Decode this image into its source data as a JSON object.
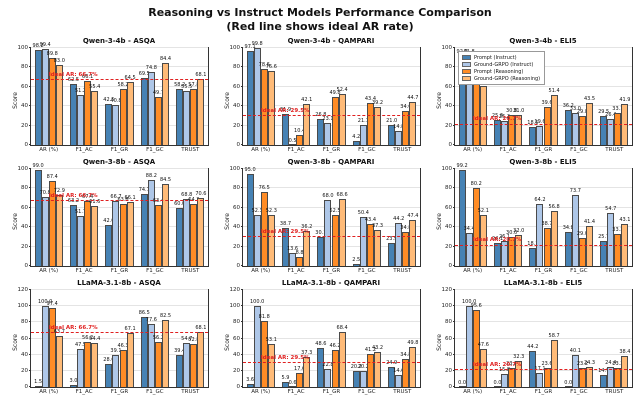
{
  "header": {
    "title": "Reasoning vs Instruct Models Performance Comparison",
    "subtitle": "(Red line shows ideal AR rate)"
  },
  "ylabel": "Score",
  "categories": [
    "AR (%)",
    "F1_AC",
    "F1_GR",
    "F1_GC",
    "TRUST"
  ],
  "legend": {
    "entries": [
      {
        "label": "Prompt (Instruct)",
        "color": "#4682b4"
      },
      {
        "label": "Ground-GRPO (Instruct)",
        "color": "#aec7e8"
      },
      {
        "label": "Prompt (Reasoning)",
        "color": "#ff8c26"
      },
      {
        "label": "Ground-GRPO (Reasoning)",
        "color": "#ffbb78"
      }
    ]
  },
  "ideal_line_color": "#e02020",
  "chart_data": [
    {
      "type": "bar",
      "title": "Qwen-3-4b - ASQA",
      "ylabel": "Score",
      "ylim": [
        0,
        100
      ],
      "yticks": [
        0,
        20,
        40,
        60,
        80,
        100
      ],
      "ideal": {
        "value": 66.7,
        "label": "Ideal AR: 66.7%"
      },
      "categories": [
        "AR (%)",
        "F1_AC",
        "F1_GR",
        "F1_GC",
        "TRUST"
      ],
      "series": [
        {
          "name": "Prompt (Instruct)",
          "values": [
            98.2,
            62.5,
            42.5,
            69.5,
            58.2
          ]
        },
        {
          "name": "Ground-GRPO (Instruct)",
          "values": [
            99.4,
            51.2,
            40.8,
            74.8,
            55.5
          ]
        },
        {
          "name": "Prompt (Reasoning)",
          "values": [
            89.8,
            66.1,
            58.2,
            49.7,
            57.8
          ]
        },
        {
          "name": "Ground-GRPO (Reasoning)",
          "values": [
            83.0,
            55.4,
            64.5,
            84.4,
            68.1
          ]
        }
      ]
    },
    {
      "type": "bar",
      "title": "Qwen-3-4b - QAMPARI",
      "ylabel": "Score",
      "ylim": [
        0,
        100
      ],
      "yticks": [
        0,
        20,
        40,
        60,
        80,
        100
      ],
      "ideal": {
        "value": 29.5,
        "label": "Ideal AR: 29.5%"
      },
      "categories": [
        "AR (%)",
        "F1_AC",
        "F1_GR",
        "F1_GC",
        "TRUST"
      ],
      "series": [
        {
          "name": "Prompt (Instruct)",
          "values": [
            97.1,
            31.9,
            26.8,
            4.2,
            21.0
          ]
        },
        {
          "name": "Ground-GRPO (Instruct)",
          "values": [
            99.8,
            0.5,
            23.1,
            21.1,
            14.8
          ]
        },
        {
          "name": "Prompt (Reasoning)",
          "values": [
            78.6,
            10.4,
            49.8,
            43.4,
            34.6
          ]
        },
        {
          "name": "Ground-GRPO (Reasoning)",
          "values": [
            76.6,
            42.1,
            52.4,
            39.2,
            44.7
          ]
        }
      ]
    },
    {
      "type": "bar",
      "title": "Qwen-3-4b - ELI5",
      "ylabel": "Score",
      "ylim": [
        0,
        100
      ],
      "yticks": [
        0,
        20,
        40,
        60,
        80,
        100
      ],
      "ideal": {
        "value": 20.7,
        "label": "Ideal AR: 20.7%"
      },
      "categories": [
        "AR (%)",
        "F1_AC",
        "F1_GR",
        "F1_GC",
        "TRUST"
      ],
      "show_legend": true,
      "series": [
        {
          "name": "Prompt (Instruct)",
          "values": [
            92.0,
            25.6,
            18.5,
            36.2,
            29.5
          ]
        },
        {
          "name": "Ground-GRPO (Instruct)",
          "values": [
            91.8,
            25.2,
            19.6,
            33.0,
            26.4
          ]
        },
        {
          "name": "Prompt (Reasoning)",
          "values": [
            79.2,
            30.8,
            39.6,
            29.8,
            33.1
          ]
        },
        {
          "name": "Ground-GRPO (Reasoning)",
          "values": [
            60.8,
            31.0,
            51.4,
            43.5,
            41.9
          ]
        }
      ]
    },
    {
      "type": "bar",
      "title": "Qwen-3-8b - ASQA",
      "ylabel": "Score",
      "ylim": [
        0,
        100
      ],
      "yticks": [
        0,
        20,
        40,
        60,
        80,
        100
      ],
      "ideal": {
        "value": 66.7,
        "label": "Ideal AR: 66.7%"
      },
      "categories": [
        "AR (%)",
        "F1_AC",
        "F1_GR",
        "F1_GC",
        "TRUST"
      ],
      "series": [
        {
          "name": "Prompt (Instruct)",
          "values": [
            99.0,
            63.2,
            42.0,
            74.7,
            60.0
          ]
        },
        {
          "name": "Ground-GRPO (Instruct)",
          "values": [
            70.8,
            51.7,
            66.7,
            88.2,
            68.8
          ]
        },
        {
          "name": "Prompt (Reasoning)",
          "values": [
            87.4,
            67.4,
            63.8,
            63.4,
            64.3
          ]
        },
        {
          "name": "Ground-GRPO (Reasoning)",
          "values": [
            72.9,
            61.6,
            66.1,
            84.5,
            70.6
          ]
        }
      ]
    },
    {
      "type": "bar",
      "title": "Qwen-3-8b - QAMPARI",
      "ylabel": "Score",
      "ylim": [
        0,
        100
      ],
      "yticks": [
        0,
        20,
        40,
        60,
        80,
        100
      ],
      "ideal": {
        "value": 29.5,
        "label": "Ideal AR: 29.5%"
      },
      "categories": [
        "AR (%)",
        "F1_AC",
        "F1_GR",
        "F1_GC",
        "TRUST"
      ],
      "series": [
        {
          "name": "Prompt (Instruct)",
          "values": [
            95.0,
            38.7,
            30.1,
            2.5,
            23.9
          ]
        },
        {
          "name": "Ground-GRPO (Instruct)",
          "values": [
            52.3,
            13.6,
            68.0,
            50.4,
            44.2
          ]
        },
        {
          "name": "Prompt (Reasoning)",
          "values": [
            76.5,
            8.8,
            52.5,
            43.4,
            34.8
          ]
        },
        {
          "name": "Ground-GRPO (Reasoning)",
          "values": [
            52.3,
            36.2,
            68.6,
            37.3,
            47.4
          ]
        }
      ]
    },
    {
      "type": "bar",
      "title": "Qwen-3-8b - ELI5",
      "ylabel": "Score",
      "ylim": [
        0,
        100
      ],
      "yticks": [
        0,
        20,
        40,
        60,
        80,
        100
      ],
      "ideal": {
        "value": 20.7,
        "label": "Ideal AR: 20.7%"
      },
      "categories": [
        "AR (%)",
        "F1_AC",
        "F1_GR",
        "F1_GC",
        "TRUST"
      ],
      "series": [
        {
          "name": "Prompt (Instruct)",
          "values": [
            99.2,
            24.1,
            18.1,
            34.8,
            25.7
          ]
        },
        {
          "name": "Ground-GRPO (Instruct)",
          "values": [
            34.4,
            26.1,
            64.2,
            73.7,
            54.7
          ]
        },
        {
          "name": "Prompt (Reasoning)",
          "values": [
            80.2,
            30.0,
            38.7,
            29.0,
            33.3
          ]
        },
        {
          "name": "Ground-GRPO (Reasoning)",
          "values": [
            52.1,
            32.0,
            56.8,
            41.4,
            43.1
          ]
        }
      ]
    },
    {
      "type": "bar",
      "title": "LLaMA-3.1-8b - ASQA",
      "ylabel": "Score",
      "ylim": [
        0,
        120
      ],
      "yticks": [
        0,
        20,
        40,
        60,
        80,
        100,
        120
      ],
      "ideal": {
        "value": 66.7,
        "label": "Ideal AR: 66.7%"
      },
      "categories": [
        "AR (%)",
        "F1_AC",
        "F1_GR",
        "F1_GC",
        "TRUST"
      ],
      "series": [
        {
          "name": "Prompt (Instruct)",
          "values": [
            1.5,
            3.0,
            28.6,
            86.5,
            39.4
          ]
        },
        {
          "name": "Ground-GRPO (Instruct)",
          "values": [
            100.0,
            47.5,
            39.1,
            77.6,
            54.7
          ]
        },
        {
          "name": "Prompt (Reasoning)",
          "values": [
            97.4,
            56.2,
            46.3,
            56.2,
            52.8
          ]
        },
        {
          "name": "Ground-GRPO (Reasoning)",
          "values": [
            63.7,
            54.4,
            67.1,
            82.5,
            68.1
          ]
        }
      ]
    },
    {
      "type": "bar",
      "title": "LLaMA-3.1-8b - QAMPARI",
      "ylabel": "Score",
      "ylim": [
        0,
        120
      ],
      "yticks": [
        0,
        20,
        40,
        60,
        80,
        100,
        120
      ],
      "ideal": {
        "value": 29.5,
        "label": "Ideal AR: 29.5%"
      },
      "categories": [
        "AR (%)",
        "F1_AC",
        "F1_GR",
        "F1_GC",
        "TRUST"
      ],
      "series": [
        {
          "name": "Prompt (Instruct)",
          "values": [
            3.6,
            5.9,
            48.6,
            20.2,
            24.9
          ]
        },
        {
          "name": "Ground-GRPO (Instruct)",
          "values": [
            100.0,
            0.6,
            22.8,
            20.2,
            14.6
          ]
        },
        {
          "name": "Prompt (Reasoning)",
          "values": [
            81.8,
            17.6,
            46.2,
            41.2,
            34.8
          ]
        },
        {
          "name": "Ground-GRPO (Reasoning)",
          "values": [
            53.1,
            37.3,
            68.4,
            43.2,
            49.8
          ]
        }
      ]
    },
    {
      "type": "bar",
      "title": "LLaMA-3.1-8b - ELI5",
      "ylabel": "Score",
      "ylim": [
        0,
        120
      ],
      "yticks": [
        0,
        20,
        40,
        60,
        80,
        100,
        120
      ],
      "ideal": {
        "value": 20.7,
        "label": "Ideal AR: 20.7%"
      },
      "categories": [
        "AR (%)",
        "F1_AC",
        "F1_GR",
        "F1_GC",
        "TRUST"
      ],
      "series": [
        {
          "name": "Prompt (Instruct)",
          "values": [
            0.0,
            0.0,
            44.2,
            0.0,
            14.7
          ]
        },
        {
          "name": "Ground-GRPO (Instruct)",
          "values": [
            100.0,
            15.8,
            17.1,
            40.1,
            24.4
          ]
        },
        {
          "name": "Prompt (Reasoning)",
          "values": [
            95.6,
            23.0,
            23.6,
            23.2,
            23.2
          ]
        },
        {
          "name": "Ground-GRPO (Reasoning)",
          "values": [
            47.6,
            32.3,
            58.7,
            24.3,
            38.4
          ]
        }
      ]
    }
  ]
}
